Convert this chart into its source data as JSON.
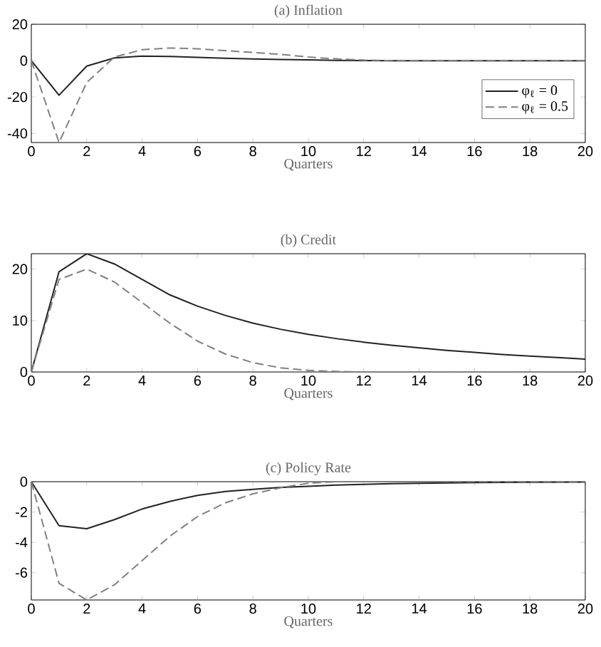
{
  "chart_data": [
    {
      "type": "line",
      "title": "(a) Inflation",
      "xlabel": "Quarters",
      "x": [
        0,
        1,
        2,
        3,
        4,
        5,
        6,
        7,
        8,
        9,
        10,
        11,
        12,
        13,
        14,
        15,
        16,
        17,
        18,
        19,
        20
      ],
      "xlim": [
        0,
        20
      ],
      "xticks": [
        0,
        2,
        4,
        6,
        8,
        10,
        12,
        14,
        16,
        18,
        20
      ],
      "ylim": [
        -45,
        20
      ],
      "yticks": [
        -40,
        -20,
        0,
        20
      ],
      "legend": "right",
      "series": [
        {
          "name": "φ$_{ℓ}$ = 0",
          "color": "#222222",
          "line_style": "solid",
          "values": [
            0,
            -19,
            -3,
            1.5,
            2.5,
            2.3,
            1.8,
            1.3,
            0.9,
            0.6,
            0.4,
            0.2,
            0.1,
            0,
            0,
            0,
            0,
            0,
            0,
            0,
            0
          ]
        },
        {
          "name": "φ$_{ℓ}$ = 0.5",
          "color": "#808080",
          "line_style": "dashed",
          "values": [
            0,
            -45,
            -12,
            2,
            6,
            7,
            6.5,
            5.5,
            4.5,
            3.5,
            2,
            1,
            0.3,
            0,
            0,
            0,
            0,
            0,
            0,
            0,
            0
          ]
        }
      ]
    },
    {
      "type": "line",
      "title": "(b) Credit",
      "xlabel": "Quarters",
      "x": [
        0,
        1,
        2,
        3,
        4,
        5,
        6,
        7,
        8,
        9,
        10,
        11,
        12,
        13,
        14,
        15,
        16,
        17,
        18,
        19,
        20
      ],
      "xlim": [
        0,
        20
      ],
      "xticks": [
        0,
        2,
        4,
        6,
        8,
        10,
        12,
        14,
        16,
        18,
        20
      ],
      "ylim": [
        0,
        23
      ],
      "yticks": [
        0,
        10,
        20
      ],
      "series": [
        {
          "color": "#222222",
          "line_style": "solid",
          "values": [
            0,
            19.5,
            23,
            21,
            18,
            15,
            12.8,
            11,
            9.5,
            8.3,
            7.3,
            6.5,
            5.8,
            5.2,
            4.7,
            4.2,
            3.8,
            3.4,
            3.1,
            2.8,
            2.5
          ]
        },
        {
          "color": "#808080",
          "line_style": "dashed",
          "values": [
            0,
            18,
            20,
            17.5,
            13.5,
            9.5,
            6,
            3.5,
            1.8,
            0.8,
            0.3,
            0.1,
            0,
            0,
            0,
            0,
            0,
            0,
            0,
            0,
            0
          ]
        }
      ]
    },
    {
      "type": "line",
      "title": "(c) Policy Rate",
      "xlabel": "Quarters",
      "x": [
        0,
        1,
        2,
        3,
        4,
        5,
        6,
        7,
        8,
        9,
        10,
        11,
        12,
        13,
        14,
        15,
        16,
        17,
        18,
        19,
        20
      ],
      "xlim": [
        0,
        20
      ],
      "xticks": [
        0,
        2,
        4,
        6,
        8,
        10,
        12,
        14,
        16,
        18,
        20
      ],
      "ylim": [
        -7.8,
        0
      ],
      "yticks": [
        -6,
        -4,
        -2,
        0
      ],
      "series": [
        {
          "color": "#222222",
          "line_style": "solid",
          "values": [
            0,
            -2.9,
            -3.1,
            -2.5,
            -1.8,
            -1.3,
            -0.9,
            -0.65,
            -0.5,
            -0.38,
            -0.3,
            -0.22,
            -0.17,
            -0.13,
            -0.1,
            -0.08,
            -0.06,
            -0.05,
            -0.04,
            -0.03,
            -0.02
          ]
        },
        {
          "color": "#808080",
          "line_style": "dashed",
          "values": [
            0,
            -6.7,
            -7.8,
            -6.8,
            -5.2,
            -3.6,
            -2.3,
            -1.4,
            -0.8,
            -0.4,
            -0.1,
            0,
            0,
            0,
            0,
            0,
            0,
            0,
            0,
            0,
            0
          ]
        }
      ]
    }
  ]
}
